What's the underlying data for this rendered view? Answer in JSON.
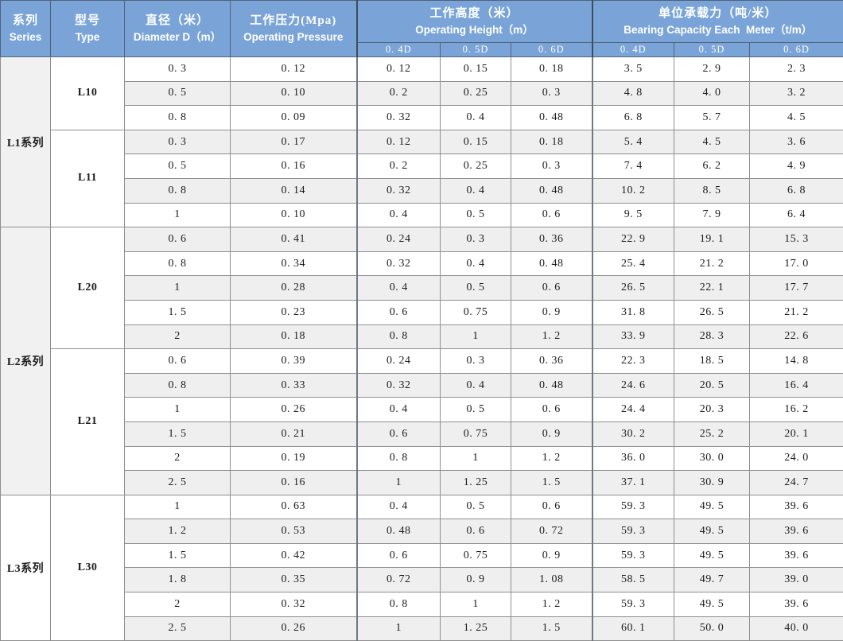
{
  "header": {
    "series_zh": "系列",
    "series_en": "Series",
    "type_zh": "型号",
    "type_en": "Type",
    "diameter_zh": "直径（米）",
    "diameter_en": "Diameter D（m）",
    "pressure_zh": "工作压力(Mpa)",
    "pressure_en": "Operating Pressure",
    "height_zh": "工作高度（米）",
    "height_en": "Operating Height（m）",
    "capacity_zh": "单位承载力（吨/米）",
    "capacity_en": "Bearing Capacity Each  Meter（t/m）",
    "subcols": [
      "0. 4D",
      "0. 5D",
      "0. 6D"
    ]
  },
  "columns": [
    "series",
    "type",
    "diameter",
    "operating_pressure",
    "height_0.4D",
    "height_0.5D",
    "height_0.6D",
    "capacity_0.4D",
    "capacity_0.5D",
    "capacity_0.6D"
  ],
  "groups": [
    {
      "series": "L1系列",
      "shaded": true,
      "types": [
        {
          "type": "L10",
          "rows": [
            [
              "0. 3",
              "0. 12",
              "0. 12",
              "0. 15",
              "0. 18",
              "3. 5",
              "2. 9",
              "2. 3"
            ],
            [
              "0. 5",
              "0. 10",
              "0. 2",
              "0. 25",
              "0. 3",
              "4. 8",
              "4. 0",
              "3. 2"
            ],
            [
              "0. 8",
              "0. 09",
              "0. 32",
              "0. 4",
              "0. 48",
              "6. 8",
              "5. 7",
              "4. 5"
            ]
          ]
        },
        {
          "type": "L11",
          "rows": [
            [
              "0. 3",
              "0. 17",
              "0. 12",
              "0. 15",
              "0. 18",
              "5. 4",
              "4. 5",
              "3. 6"
            ],
            [
              "0. 5",
              "0. 16",
              "0. 2",
              "0. 25",
              "0. 3",
              "7. 4",
              "6. 2",
              "4. 9"
            ],
            [
              "0. 8",
              "0. 14",
              "0. 32",
              "0. 4",
              "0. 48",
              "10. 2",
              "8. 5",
              "6. 8"
            ],
            [
              "1",
              "0. 10",
              "0. 4",
              "0. 5",
              "0. 6",
              "9. 5",
              "7. 9",
              "6. 4"
            ]
          ]
        }
      ]
    },
    {
      "series": "L2系列",
      "shaded": true,
      "types": [
        {
          "type": "L20",
          "rows": [
            [
              "0. 6",
              "0. 41",
              "0. 24",
              "0. 3",
              "0. 36",
              "22. 9",
              "19. 1",
              "15. 3"
            ],
            [
              "0. 8",
              "0. 34",
              "0. 32",
              "0. 4",
              "0. 48",
              "25. 4",
              "21. 2",
              "17. 0"
            ],
            [
              "1",
              "0. 28",
              "0. 4",
              "0. 5",
              "0. 6",
              "26. 5",
              "22. 1",
              "17. 7"
            ],
            [
              "1. 5",
              "0. 23",
              "0. 6",
              "0. 75",
              "0. 9",
              "31. 8",
              "26. 5",
              "21. 2"
            ],
            [
              "2",
              "0. 18",
              "0. 8",
              "1",
              "1. 2",
              "33. 9",
              "28. 3",
              "22. 6"
            ]
          ]
        },
        {
          "type": "L21",
          "rows": [
            [
              "0. 6",
              "0. 39",
              "0. 24",
              "0. 3",
              "0. 36",
              "22. 3",
              "18. 5",
              "14. 8"
            ],
            [
              "0. 8",
              "0. 33",
              "0. 32",
              "0. 4",
              "0. 48",
              "24. 6",
              "20. 5",
              "16. 4"
            ],
            [
              "1",
              "0. 26",
              "0. 4",
              "0. 5",
              "0. 6",
              "24. 4",
              "20. 3",
              "16. 2"
            ],
            [
              "1. 5",
              "0. 21",
              "0. 6",
              "0. 75",
              "0. 9",
              "30. 2",
              "25. 2",
              "20. 1"
            ],
            [
              "2",
              "0. 19",
              "0. 8",
              "1",
              "1. 2",
              "36. 0",
              "30. 0",
              "24. 0"
            ],
            [
              "2. 5",
              "0. 16",
              "1",
              "1. 25",
              "1. 5",
              "37. 1",
              "30. 9",
              "24. 7"
            ]
          ]
        }
      ]
    },
    {
      "series": "L3系列",
      "shaded": false,
      "types": [
        {
          "type": "L30",
          "rows": [
            [
              "1",
              "0. 63",
              "0. 4",
              "0. 5",
              "0. 6",
              "59. 3",
              "49. 5",
              "39. 6"
            ],
            [
              "1. 2",
              "0. 53",
              "0. 48",
              "0. 6",
              "0. 72",
              "59. 3",
              "49. 5",
              "39. 6"
            ],
            [
              "1. 5",
              "0. 42",
              "0. 6",
              "0. 75",
              "0. 9",
              "59. 3",
              "49. 5",
              "39. 6"
            ],
            [
              "1. 8",
              "0. 35",
              "0. 72",
              "0. 9",
              "1. 08",
              "58. 5",
              "49. 7",
              "39. 0"
            ],
            [
              "2",
              "0. 32",
              "0. 8",
              "1",
              "1. 2",
              "59. 3",
              "49. 5",
              "39. 6"
            ],
            [
              "2. 5",
              "0. 26",
              "1",
              "1. 25",
              "1. 5",
              "60. 1",
              "50. 0",
              "40. 0"
            ]
          ]
        }
      ]
    }
  ],
  "colors": {
    "header_bg": "#7aa4d8",
    "header_text": "#ffffff",
    "stripe": "#efefef",
    "series_cell_shade": "#f1f1f1",
    "body_text": "#1c1c1c",
    "border": "#8f8f8f",
    "header_border": "#3f4c5c"
  }
}
